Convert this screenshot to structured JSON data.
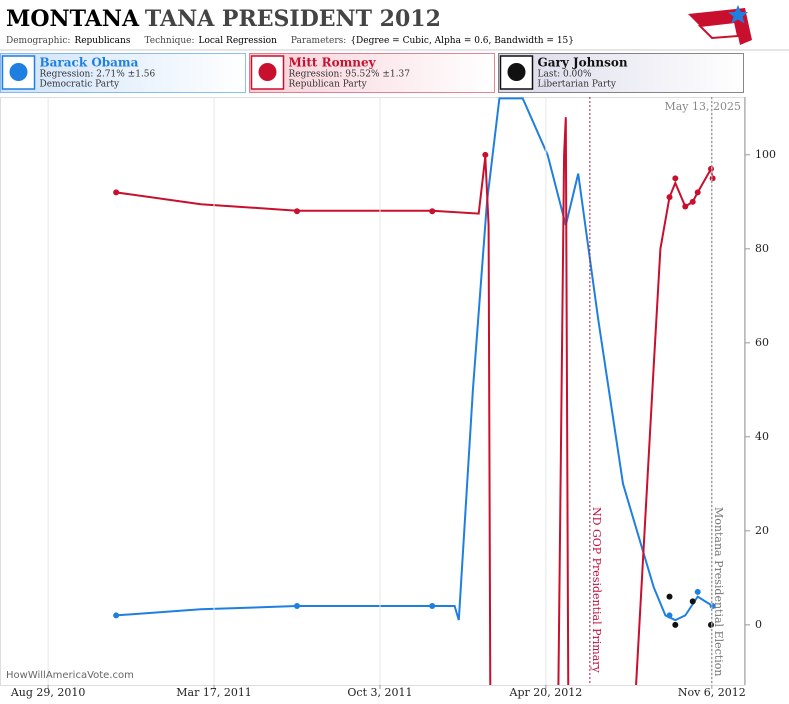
{
  "header": {
    "state": "MONTANA",
    "race": "TANA PRESIDENT 2012",
    "params": [
      {
        "label": "Demographic:",
        "value": "Republicans"
      },
      {
        "label": "Technique:",
        "value": "Local Regression"
      },
      {
        "label": "Parameters:",
        "value": "{Degree = Cubic, Alpha = 0.6, Bandwidth = 15}"
      }
    ]
  },
  "chart_data": {
    "type": "line",
    "date": "May 13, 2025",
    "watermark": "HowWillAmericaVote.com",
    "xlim": [
      "2010-07-02",
      "2012-12-16"
    ],
    "xticks": [
      {
        "value": "2010-08-29",
        "label": "Aug 29, 2010"
      },
      {
        "value": "2011-03-17",
        "label": "Mar 17, 2011"
      },
      {
        "value": "2011-10-03",
        "label": "Oct 3, 2011"
      },
      {
        "value": "2012-04-20",
        "label": "Apr 20, 2012"
      },
      {
        "value": "2012-11-06",
        "label": "Nov 6, 2012"
      }
    ],
    "ylim": [
      -12.8,
      112.3
    ],
    "yticks": [
      0,
      20,
      40,
      60,
      80,
      100
    ],
    "xgrid": true,
    "events": [
      {
        "x": "2012-06-12",
        "label": "ND GOP Presidential Primary",
        "color": "#c0103c"
      },
      {
        "x": "2012-11-06",
        "label": "Montana Presidential Election",
        "color": "#777777"
      }
    ],
    "series": [
      {
        "name": "Barack Obama",
        "detail": "Regression: 2.71% ±1.56",
        "party": "Democratic Party",
        "color": "#1f7fe0",
        "x": [
          "2010-11-19",
          "2011-03-01",
          "2011-06-25",
          "2011-12-05",
          "2012-01-01",
          "2012-01-06",
          "2012-01-23",
          "2012-02-09",
          "2012-02-24",
          "2012-03-23",
          "2012-04-22",
          "2012-05-14",
          "2012-05-29",
          "2012-06-22",
          "2012-07-22",
          "2012-08-28",
          "2012-09-11",
          "2012-09-23",
          "2012-10-05",
          "2012-10-20",
          "2012-11-07"
        ],
        "values": [
          2,
          3.3,
          4,
          4,
          4,
          1,
          50,
          90,
          112,
          112,
          100,
          85,
          96,
          65,
          30,
          8,
          2,
          1,
          2,
          6,
          4
        ],
        "points": {
          "x": [
            "2010-11-19",
            "2011-06-25",
            "2011-12-05",
            "2012-09-16",
            "2012-10-20",
            "2012-11-07"
          ],
          "values": [
            2,
            4,
            4,
            2,
            7,
            4
          ]
        }
      },
      {
        "name": "Mitt Romney",
        "detail": "Regression: 95.52% ±1.37",
        "party": "Republican Party",
        "color": "#c8102e",
        "x": [
          "2010-11-19",
          "2011-03-01",
          "2011-06-25",
          "2011-12-05",
          "2012-01-30",
          "2012-02-04",
          "2012-02-07",
          "2012-02-11",
          "2012-02-13",
          null,
          "2012-05-05",
          "2012-05-12",
          "2012-05-14",
          "2012-05-17",
          null,
          "2012-08-06",
          "2012-08-28",
          "2012-09-05",
          "2012-09-16",
          "2012-09-23",
          "2012-10-05",
          "2012-10-14",
          "2012-10-20",
          "2012-11-05",
          "2012-11-07"
        ],
        "values": [
          92,
          89.5,
          88.1,
          88.1,
          87.5,
          95,
          99.6,
          85,
          -15,
          null,
          -15,
          100,
          108,
          -15,
          null,
          -15,
          55,
          80,
          91,
          94,
          89,
          90,
          92,
          97,
          95
        ],
        "points": {
          "x": [
            "2010-11-19",
            "2011-06-25",
            "2011-12-05",
            "2012-02-07",
            "2012-09-16",
            "2012-09-23",
            "2012-10-05",
            "2012-10-14",
            "2012-10-20",
            "2012-11-05",
            "2012-11-07"
          ],
          "values": [
            92,
            88,
            88,
            100,
            91,
            95,
            89,
            90,
            92,
            97,
            95
          ]
        }
      },
      {
        "name": "Gary Johnson",
        "detail": "Last: 0.00%",
        "party": "Libertarian Party",
        "color": "#111111",
        "points": {
          "x": [
            "2012-09-16",
            "2012-09-23",
            "2012-10-14",
            "2012-11-05"
          ],
          "values": [
            6,
            0,
            5,
            0
          ]
        }
      }
    ]
  }
}
